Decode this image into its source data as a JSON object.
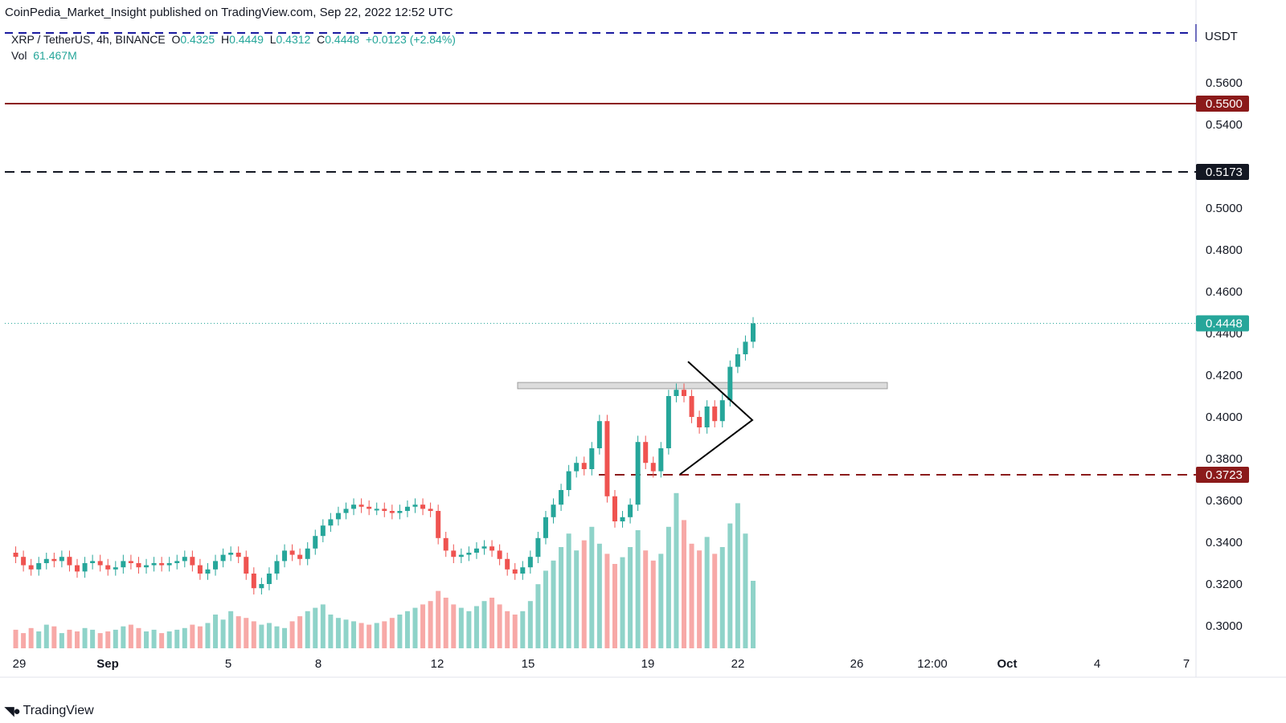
{
  "header": {
    "publisher": "CoinPedia_Market_Insight published on TradingView.com, Sep 22, 2022 12:52 UTC"
  },
  "legend": {
    "symbol": "XRP / TetherUS, 4h, BINANCE",
    "o_label": "O",
    "o_value": "0.4325",
    "h_label": "H",
    "h_value": "0.4449",
    "l_label": "L",
    "l_value": "0.4312",
    "c_label": "C",
    "c_value": "0.4448",
    "change": "+0.0123 (+2.84%)",
    "vol_label": "Vol",
    "vol_value": "61.467M"
  },
  "footer": {
    "brand": "TradingView"
  },
  "colors": {
    "up": "#26a69a",
    "down": "#ef5350",
    "vol_up": "#8fd3c9",
    "vol_down": "#f7a9a7",
    "resistance": "#8b1a1a"
  },
  "chart_data": {
    "type": "candlestick",
    "currency": "USDT",
    "ylim": [
      0.29,
      0.576
    ],
    "y_ticks": [
      "0.5600",
      "0.5400",
      "0.5000",
      "0.4800",
      "0.4600",
      "0.4400",
      "0.4200",
      "0.4000",
      "0.3800",
      "0.3600",
      "0.3400",
      "0.3200",
      "0.3000"
    ],
    "x_ticks": [
      "29",
      "Sep",
      "5",
      "8",
      "12",
      "15",
      "19",
      "22",
      "26",
      "12:00",
      "Oct",
      "4",
      "7"
    ],
    "levels": [
      {
        "price": 0.55,
        "label": "0.5500",
        "style": "solid",
        "color": "#8b1a1a"
      },
      {
        "price": 0.5173,
        "label": "0.5173",
        "style": "dashed",
        "color": "#131722"
      },
      {
        "price": 0.3723,
        "label": "0.3723",
        "style": "dashed",
        "color": "#8b1a1a"
      },
      {
        "price": 0.4448,
        "label": "0.4448",
        "style": "dotted",
        "color": "#26a69a"
      }
    ],
    "zone": {
      "low": 0.4135,
      "high": 0.4165
    },
    "triangle": {
      "top": 0.4265,
      "bottom": 0.3725,
      "apex": 0.3985
    },
    "price_path": [
      0.335,
      0.333,
      0.329,
      0.327,
      0.33,
      0.332,
      0.331,
      0.333,
      0.329,
      0.326,
      0.33,
      0.331,
      0.329,
      0.327,
      0.328,
      0.331,
      0.33,
      0.328,
      0.329,
      0.33,
      0.329,
      0.33,
      0.331,
      0.333,
      0.329,
      0.325,
      0.327,
      0.331,
      0.334,
      0.335,
      0.333,
      0.325,
      0.318,
      0.32,
      0.325,
      0.331,
      0.336,
      0.334,
      0.332,
      0.337,
      0.343,
      0.348,
      0.351,
      0.354,
      0.356,
      0.358,
      0.357,
      0.356,
      0.356,
      0.355,
      0.354,
      0.355,
      0.357,
      0.358,
      0.356,
      0.355,
      0.342,
      0.336,
      0.333,
      0.334,
      0.335,
      0.337,
      0.338,
      0.336,
      0.332,
      0.327,
      0.325,
      0.328,
      0.333,
      0.342,
      0.352,
      0.358,
      0.365,
      0.374,
      0.378,
      0.375,
      0.385,
      0.398,
      0.362,
      0.35,
      0.352,
      0.358,
      0.388,
      0.378,
      0.374,
      0.385,
      0.41,
      0.413,
      0.41,
      0.4,
      0.395,
      0.405,
      0.398,
      0.408,
      0.424,
      0.43,
      0.436,
      0.4448
    ],
    "volume_path": [
      8,
      11,
      9,
      12,
      10,
      14,
      13,
      9,
      11,
      10,
      12,
      11,
      9,
      10,
      11,
      13,
      14,
      12,
      10,
      11,
      9,
      10,
      11,
      12,
      14,
      13,
      15,
      20,
      17,
      22,
      19,
      18,
      16,
      14,
      15,
      13,
      12,
      16,
      19,
      22,
      24,
      26,
      20,
      18,
      17,
      16,
      15,
      14,
      15,
      16,
      18,
      20,
      22,
      24,
      26,
      28,
      34,
      30,
      26,
      24,
      22,
      25,
      28,
      30,
      26,
      22,
      20,
      22,
      28,
      38,
      46,
      52,
      60,
      68,
      58,
      64,
      72,
      62,
      56,
      50,
      54,
      60,
      70,
      58,
      52,
      56,
      72,
      92,
      76,
      62,
      58,
      66,
      56,
      60,
      74,
      86,
      68,
      40
    ]
  }
}
